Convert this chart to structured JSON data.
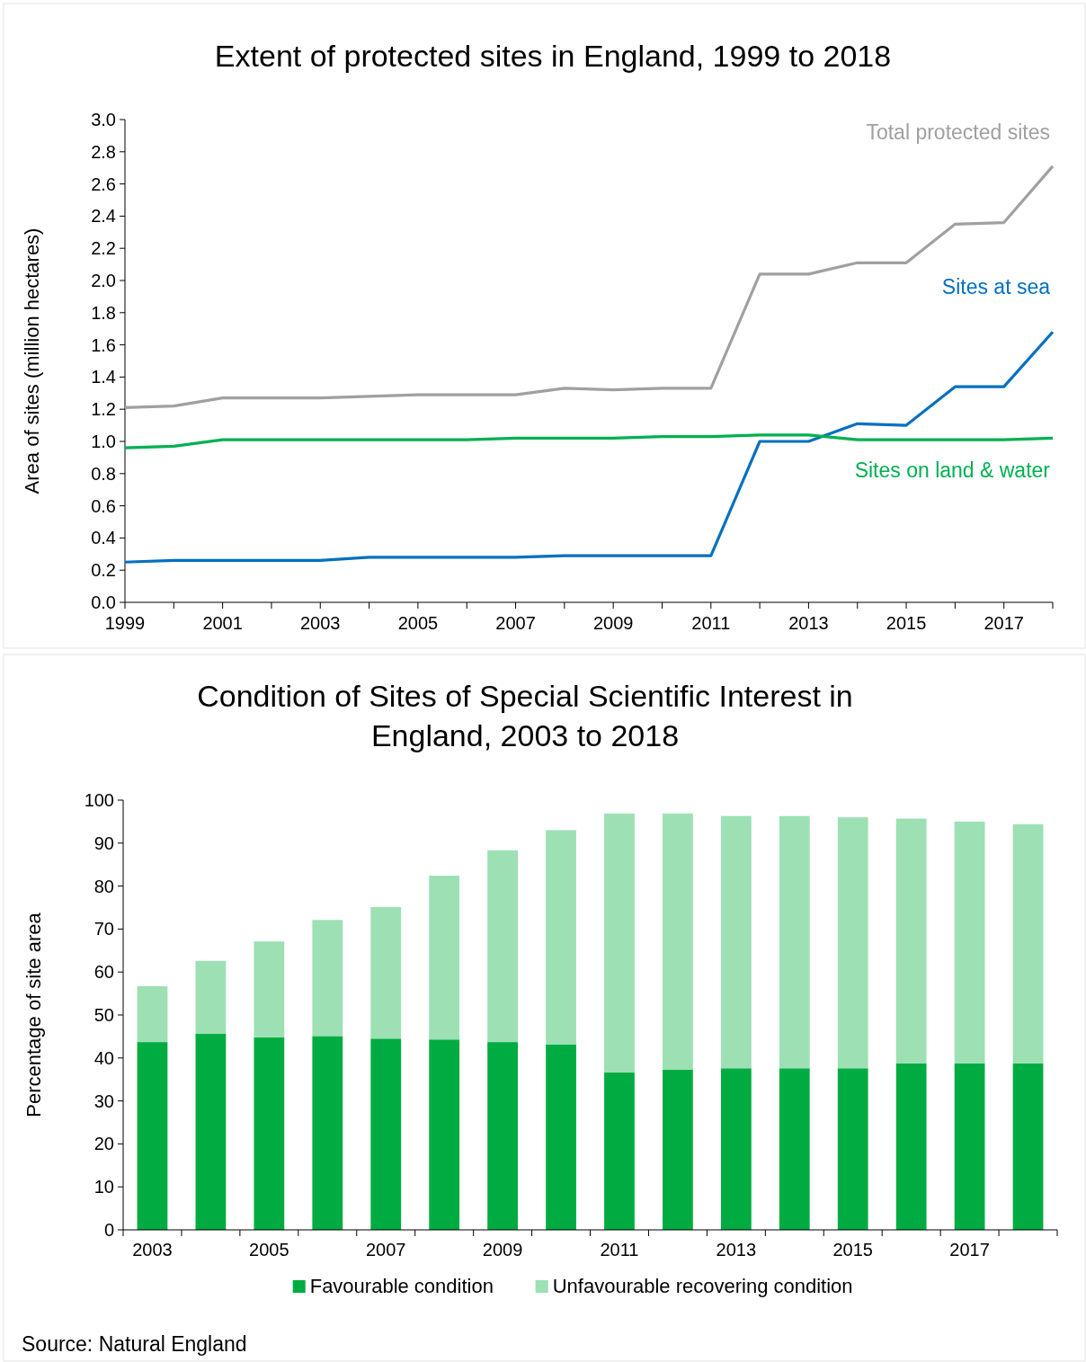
{
  "chart_data": [
    {
      "type": "line",
      "title": "Extent of protected sites in England, 1999 to 2018",
      "ylabel": "Area of sites (million hectares)",
      "x": [
        1999,
        2000,
        2001,
        2002,
        2003,
        2004,
        2005,
        2006,
        2007,
        2008,
        2009,
        2010,
        2011,
        2012,
        2013,
        2014,
        2015,
        2016,
        2017,
        2018
      ],
      "series": [
        {
          "name": "Total protected sites",
          "color": "#a0a0a0",
          "values": [
            1.21,
            1.22,
            1.27,
            1.27,
            1.27,
            1.28,
            1.29,
            1.29,
            1.29,
            1.33,
            1.32,
            1.33,
            1.33,
            2.04,
            2.04,
            2.11,
            2.11,
            2.35,
            2.36,
            2.71
          ]
        },
        {
          "name": "Sites at sea",
          "color": "#0070c0",
          "values": [
            0.25,
            0.26,
            0.26,
            0.26,
            0.26,
            0.28,
            0.28,
            0.28,
            0.28,
            0.29,
            0.29,
            0.29,
            0.29,
            1.0,
            1.0,
            1.11,
            1.1,
            1.34,
            1.34,
            1.68
          ]
        },
        {
          "name": "Sites on land & water",
          "color": "#00b050",
          "values": [
            0.96,
            0.97,
            1.01,
            1.01,
            1.01,
            1.01,
            1.01,
            1.01,
            1.02,
            1.02,
            1.02,
            1.03,
            1.03,
            1.04,
            1.04,
            1.01,
            1.01,
            1.01,
            1.01,
            1.02
          ]
        }
      ],
      "xlim": [
        1999,
        2018
      ],
      "xticks": [
        1999,
        {
          "value": 2000,
          "label": null
        },
        2001,
        {
          "value": 2002,
          "label": null
        },
        2003,
        {
          "value": 2004,
          "label": null
        },
        2005,
        {
          "value": 2006,
          "label": null
        },
        2007,
        {
          "value": 2008,
          "label": null
        },
        2009,
        {
          "value": 2010,
          "label": null
        },
        2011,
        {
          "value": 2012,
          "label": null
        },
        2013,
        {
          "value": 2014,
          "label": null
        },
        2015,
        {
          "value": 2016,
          "label": null
        },
        2017,
        {
          "value": 2018,
          "label": null
        }
      ],
      "ylim": [
        0,
        3
      ],
      "yticks": [
        {
          "value": 0,
          "label": "0.0"
        },
        {
          "value": 0.2,
          "label": "0.2"
        },
        {
          "value": 0.4,
          "label": "0.4"
        },
        {
          "value": 0.6,
          "label": "0.6"
        },
        {
          "value": 0.8,
          "label": "0.8"
        },
        {
          "value": 1,
          "label": "1.0"
        },
        {
          "value": 1.2,
          "label": "1.2"
        },
        {
          "value": 1.4,
          "label": "1.4"
        },
        {
          "value": 1.6,
          "label": "1.6"
        },
        {
          "value": 1.8,
          "label": "1.8"
        },
        {
          "value": 2,
          "label": "2.0"
        },
        {
          "value": 2.2,
          "label": "2.2"
        },
        {
          "value": 2.4,
          "label": "2.4"
        },
        {
          "value": 2.6,
          "label": "2.6"
        },
        {
          "value": 2.8,
          "label": "2.8"
        },
        {
          "value": 3,
          "label": "3.0"
        }
      ],
      "grid": false
    },
    {
      "type": "bar",
      "stacked": true,
      "title": "Condition of Sites of Special Scientific Interest in England, 2003 to 2018",
      "ylabel": "Percentage of site area",
      "categories": [
        "2003",
        null,
        "2005",
        null,
        "2007",
        null,
        "2009",
        null,
        "2011",
        null,
        "2013",
        null,
        "2015",
        null,
        "2017",
        null
      ],
      "series": [
        {
          "name": "Favourable condition",
          "color": "#00ac41",
          "values": [
            43.7,
            45.6,
            44.8,
            45.1,
            44.5,
            44.3,
            43.7,
            43.1,
            36.6,
            37.3,
            37.6,
            37.6,
            37.6,
            38.7,
            38.7,
            38.7
          ]
        },
        {
          "name": "Unfavourable recovering condition",
          "color": "#9ce0b4",
          "values": [
            13.0,
            17.0,
            22.3,
            27.0,
            30.6,
            38.1,
            44.6,
            49.9,
            60.3,
            59.6,
            58.7,
            58.7,
            58.4,
            57.0,
            56.3,
            55.7
          ]
        }
      ],
      "ylim": [
        0,
        100
      ],
      "yticks": [
        0,
        10,
        20,
        30,
        40,
        50,
        60,
        70,
        80,
        90,
        100
      ],
      "grid": false,
      "legend": "bottom",
      "annotations": [
        "Source: Natural England"
      ]
    }
  ]
}
